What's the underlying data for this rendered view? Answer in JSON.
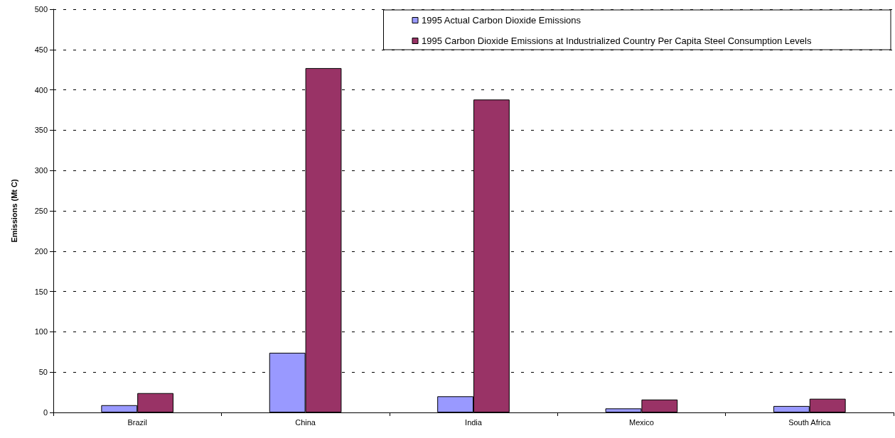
{
  "chart_data": {
    "type": "bar",
    "ylabel": "Emissions (Mt C)",
    "categories": [
      "Brazil",
      "China",
      "India",
      "Mexico",
      "South Africa"
    ],
    "series": [
      {
        "name": "1995 Actual Carbon Dioxide Emissions",
        "color": "#9999ff",
        "values": [
          9,
          74,
          20,
          5,
          8
        ]
      },
      {
        "name": "1995 Carbon Dioxide Emissions at Industrialized Country Per Capita Steel Consumption Levels",
        "color": "#993366",
        "values": [
          24,
          427,
          388,
          16,
          17
        ]
      }
    ],
    "ylim": [
      0,
      500
    ],
    "yticks": [
      0,
      50,
      100,
      150,
      200,
      250,
      300,
      350,
      400,
      450,
      500
    ],
    "grid": "y",
    "legend": "top right"
  }
}
